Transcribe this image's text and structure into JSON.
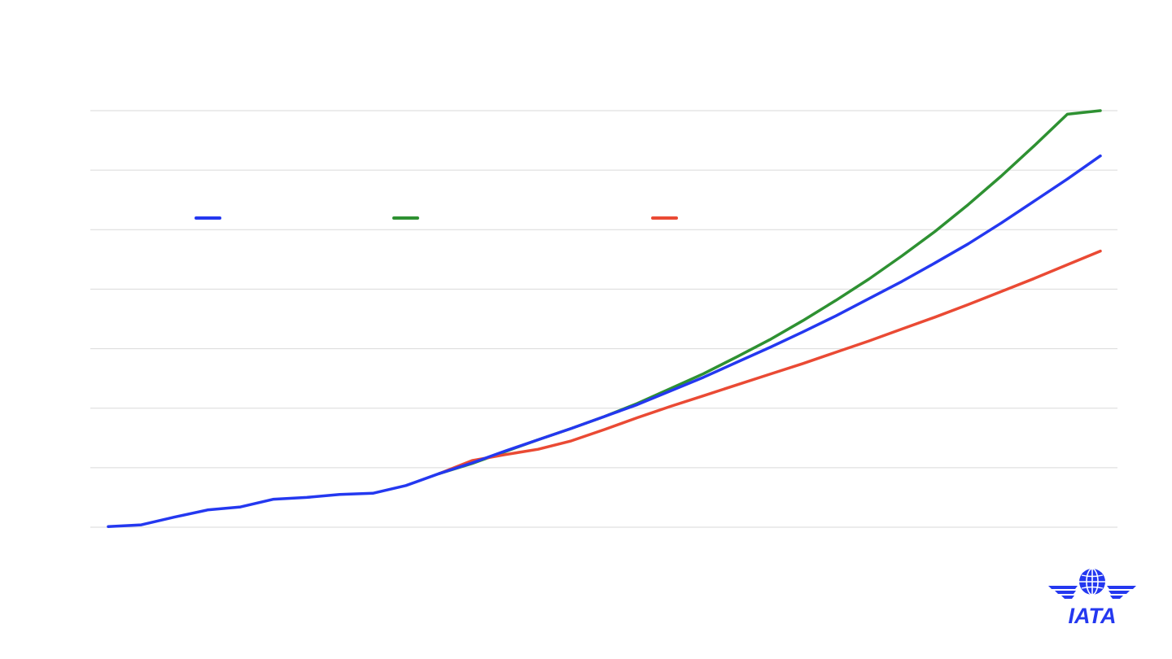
{
  "chart_data": {
    "type": "line",
    "title": "",
    "xlabel": "",
    "ylabel": "",
    "ylim": [
      0,
      7
    ],
    "grid": true,
    "legend_position": "top-left",
    "x": [
      0,
      1,
      2,
      3,
      4,
      5,
      6,
      7,
      8,
      9,
      10,
      11,
      12,
      13,
      14,
      15,
      16,
      17,
      18,
      19,
      20,
      21,
      22,
      23,
      24,
      25,
      26,
      27,
      28,
      29,
      30
    ],
    "series": [
      {
        "name": "",
        "color": "#2438f0",
        "x": [
          0,
          1,
          2,
          3,
          4,
          5,
          6,
          7,
          8,
          9,
          10,
          11,
          12,
          13,
          14,
          15,
          16,
          17,
          18,
          19,
          20,
          21,
          22,
          23,
          24,
          25,
          26,
          27,
          28,
          29,
          30
        ],
        "values": [
          0.01,
          0.04,
          0.17,
          0.29,
          0.34,
          0.47,
          0.5,
          0.55,
          0.57,
          0.7,
          0.9,
          1.08,
          1.28,
          1.47,
          1.66,
          1.86,
          2.06,
          2.29,
          2.52,
          2.77,
          3.02,
          3.28,
          3.55,
          3.84,
          4.13,
          4.44,
          4.76,
          5.11,
          5.48,
          5.85,
          6.24
        ]
      },
      {
        "name": "",
        "color": "#2e9132",
        "x": [
          10,
          11,
          12,
          13,
          14,
          15,
          16,
          17,
          18,
          19,
          20,
          21,
          22,
          23,
          24,
          25,
          26,
          27,
          28,
          29,
          30
        ],
        "values": [
          0.9,
          1.07,
          1.27,
          1.47,
          1.66,
          1.86,
          2.08,
          2.33,
          2.58,
          2.86,
          3.15,
          3.47,
          3.81,
          4.17,
          4.56,
          4.97,
          5.42,
          5.9,
          6.41,
          6.94,
          7.0
        ]
      },
      {
        "name": "",
        "color": "#ea4a34",
        "x": [
          10,
          11,
          12,
          13,
          14,
          15,
          16,
          17,
          18,
          19,
          20,
          21,
          22,
          23,
          24,
          25,
          26,
          27,
          28,
          29,
          30
        ],
        "values": [
          0.9,
          1.12,
          1.22,
          1.31,
          1.45,
          1.64,
          1.84,
          2.03,
          2.21,
          2.39,
          2.57,
          2.75,
          2.94,
          3.13,
          3.33,
          3.53,
          3.74,
          3.96,
          4.18,
          4.41,
          4.64
        ]
      }
    ]
  },
  "branding": {
    "logo_text": "IATA",
    "logo_color": "#2438f0"
  }
}
